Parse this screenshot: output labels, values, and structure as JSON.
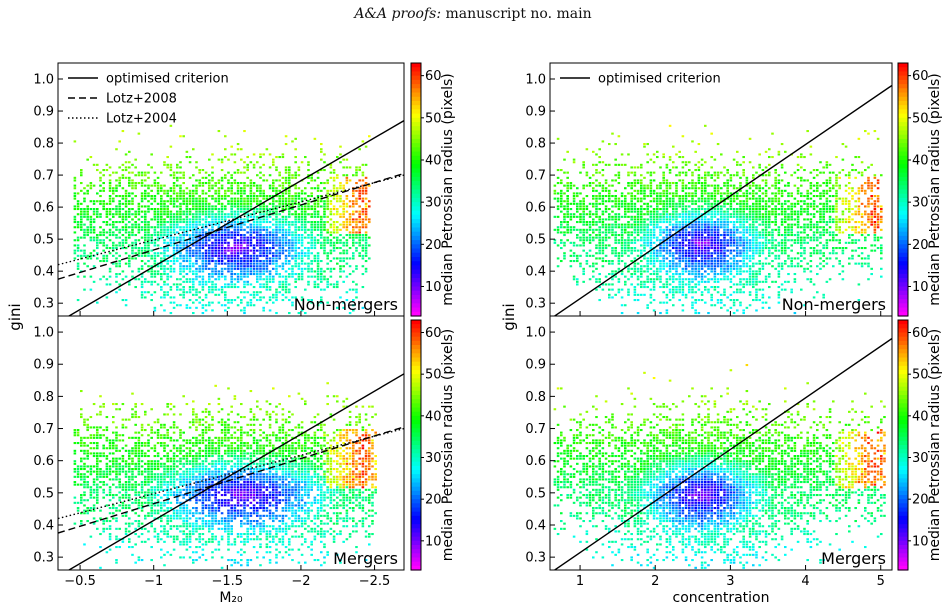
{
  "header": {
    "journal": "A&A proofs:",
    "rest": "manuscript no. main"
  },
  "colorbar": {
    "label": "median Petrossian radius (pixels)",
    "ticks": [
      10,
      20,
      30,
      40,
      50,
      60
    ],
    "range": [
      3,
      63
    ],
    "colormap": "gist_rainbow_r"
  },
  "chart_data": [
    {
      "type": "heatmap",
      "id": "m20-nonmergers",
      "panel_label": "Non-mergers",
      "xlabel": "",
      "ylabel": "gini",
      "xlim": [
        -0.35,
        -2.7
      ],
      "ylim": [
        0.26,
        1.05
      ],
      "xticks": [
        -0.5,
        -1.0,
        -1.5,
        -2.0,
        -2.5
      ],
      "xticks_labeled": false,
      "yticks": [
        0.3,
        0.4,
        0.5,
        0.6,
        0.7,
        0.8,
        0.9,
        1.0
      ],
      "legend": {
        "placement": "top-left",
        "entries": [
          {
            "label": "optimised criterion",
            "style": "solid"
          },
          {
            "label": "Lotz+2008",
            "style": "dashed"
          },
          {
            "label": "Lotz+2004",
            "style": "dotted"
          }
        ]
      },
      "lines": [
        {
          "name": "optimised criterion",
          "style": "solid",
          "points": [
            [
              -0.35,
              0.24
            ],
            [
              -2.7,
              0.87
            ]
          ]
        },
        {
          "name": "Lotz+2008",
          "style": "dashed",
          "points": [
            [
              -0.35,
              0.375
            ],
            [
              -2.7,
              0.705
            ]
          ]
        },
        {
          "name": "Lotz+2004",
          "style": "dotted",
          "points": [
            [
              -0.35,
              0.42
            ],
            [
              -2.7,
              0.7
            ]
          ]
        }
      ],
      "distribution": {
        "center_x": -1.55,
        "center_y": 0.48,
        "spread_x": 0.45,
        "spread_y": 0.12,
        "x_range": [
          -0.45,
          -2.45
        ],
        "y_range": [
          0.27,
          0.86
        ],
        "high_value_x": -2.4
      }
    },
    {
      "type": "heatmap",
      "id": "m20-mergers",
      "panel_label": "Mergers",
      "xlabel": "M₂₀",
      "ylabel": "",
      "xlim": [
        -0.35,
        -2.7
      ],
      "ylim": [
        0.26,
        1.05
      ],
      "xticks": [
        -0.5,
        -1.0,
        -1.5,
        -2.0,
        -2.5
      ],
      "xticks_labeled": true,
      "yticks": [
        0.3,
        0.4,
        0.5,
        0.6,
        0.7,
        0.8,
        0.9,
        1.0
      ],
      "lines": [
        {
          "name": "optimised criterion",
          "style": "solid",
          "points": [
            [
              -0.35,
              0.24
            ],
            [
              -2.7,
              0.87
            ]
          ]
        },
        {
          "name": "Lotz+2008",
          "style": "dashed",
          "points": [
            [
              -0.35,
              0.375
            ],
            [
              -2.7,
              0.705
            ]
          ]
        },
        {
          "name": "Lotz+2004",
          "style": "dotted",
          "points": [
            [
              -0.35,
              0.42
            ],
            [
              -2.7,
              0.7
            ]
          ]
        }
      ],
      "distribution": {
        "center_x": -1.6,
        "center_y": 0.5,
        "spread_x": 0.5,
        "spread_y": 0.12,
        "x_range": [
          -0.45,
          -2.5
        ],
        "y_range": [
          0.27,
          0.93
        ],
        "high_value_x": -2.4
      }
    },
    {
      "type": "heatmap",
      "id": "conc-nonmergers",
      "panel_label": "Non-mergers",
      "xlabel": "",
      "ylabel": "gini",
      "xlim": [
        0.6,
        5.15
      ],
      "ylim": [
        0.26,
        1.05
      ],
      "xticks": [
        1,
        2,
        3,
        4,
        5
      ],
      "xticks_labeled": false,
      "yticks": [
        0.3,
        0.4,
        0.5,
        0.6,
        0.7,
        0.8,
        0.9,
        1.0
      ],
      "legend": {
        "placement": "top-left",
        "entries": [
          {
            "label": "optimised criterion",
            "style": "solid"
          }
        ]
      },
      "lines": [
        {
          "name": "optimised criterion",
          "style": "solid",
          "points": [
            [
              0.6,
              0.25
            ],
            [
              5.15,
              0.98
            ]
          ]
        }
      ],
      "distribution": {
        "center_x": 2.6,
        "center_y": 0.49,
        "spread_x": 0.7,
        "spread_y": 0.12,
        "x_range": [
          0.65,
          5.0
        ],
        "y_range": [
          0.27,
          0.87
        ],
        "high_value_x": 4.9
      }
    },
    {
      "type": "heatmap",
      "id": "conc-mergers",
      "panel_label": "Mergers",
      "xlabel": "concentration",
      "ylabel": "",
      "xlim": [
        0.6,
        5.15
      ],
      "ylim": [
        0.26,
        1.05
      ],
      "xticks": [
        1,
        2,
        3,
        4,
        5
      ],
      "xticks_labeled": true,
      "yticks": [
        0.3,
        0.4,
        0.5,
        0.6,
        0.7,
        0.8,
        0.9,
        1.0
      ],
      "lines": [
        {
          "name": "optimised criterion",
          "style": "solid",
          "points": [
            [
              0.6,
              0.25
            ],
            [
              5.15,
              0.98
            ]
          ]
        }
      ],
      "distribution": {
        "center_x": 2.6,
        "center_y": 0.5,
        "spread_x": 0.7,
        "spread_y": 0.12,
        "x_range": [
          0.65,
          5.05
        ],
        "y_range": [
          0.27,
          0.93
        ],
        "high_value_x": 4.9
      }
    }
  ]
}
